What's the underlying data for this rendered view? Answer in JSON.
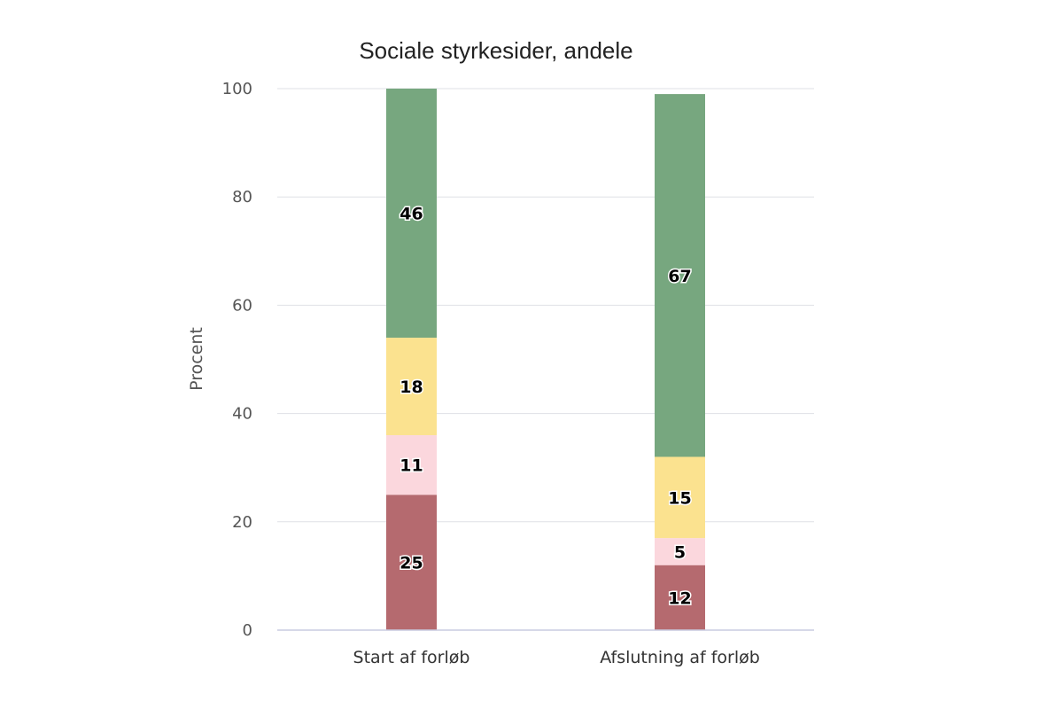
{
  "chart_data": {
    "type": "bar",
    "stacked": true,
    "title": "Sociale styrkesider, andele",
    "xlabel": "",
    "ylabel": "Procent",
    "ylim": [
      0,
      100
    ],
    "yticks": [
      0,
      20,
      40,
      60,
      80,
      100
    ],
    "grid": true,
    "legend": "none",
    "categories": [
      "Start af forløb",
      "Afslutning af forløb"
    ],
    "series": [
      {
        "values": [
          25,
          12
        ],
        "color": "#b56a6f"
      },
      {
        "values": [
          11,
          5
        ],
        "color": "#fbd7dd"
      },
      {
        "values": [
          18,
          15
        ],
        "color": "#fbe28f"
      },
      {
        "values": [
          46,
          67
        ],
        "color": "#77a77f"
      }
    ]
  }
}
